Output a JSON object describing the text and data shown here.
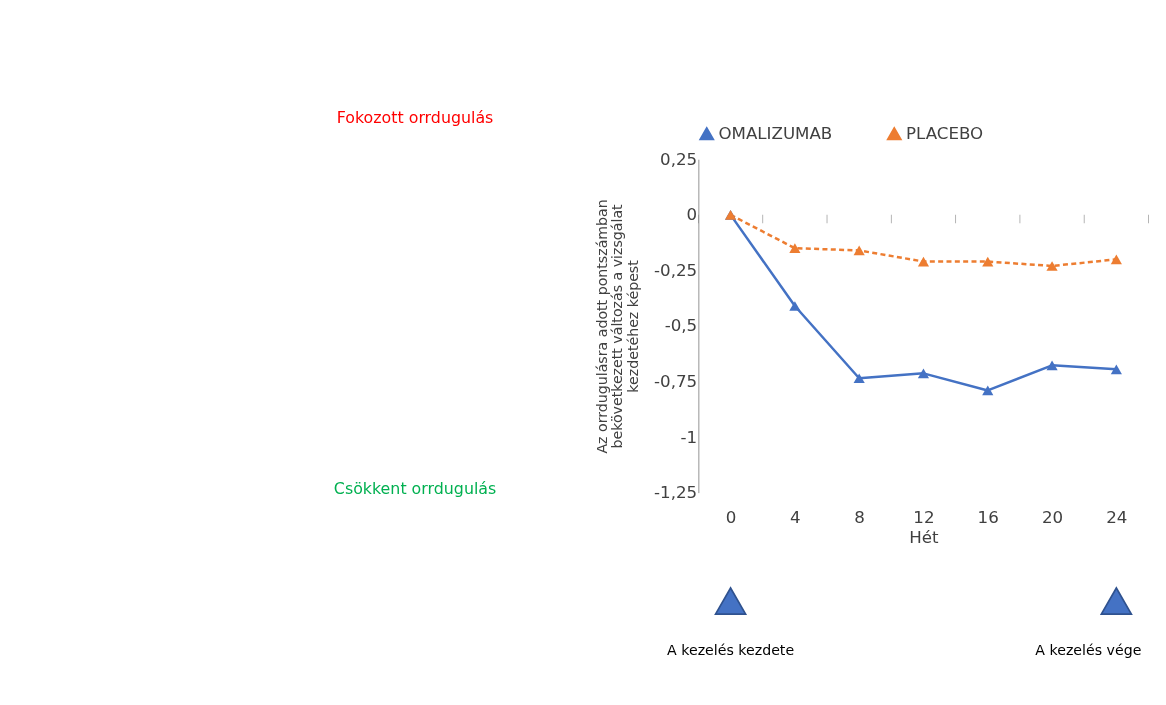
{
  "chart_data": {
    "type": "line",
    "xlabel": "Hét",
    "ylabel": "Az orrdugulásra adott pontszámban bekövetkezett változás a vizsgálat kezdetéhez képest",
    "categories": [
      "0",
      "4",
      "8",
      "12",
      "16",
      "20",
      "24"
    ],
    "series": [
      {
        "name": "OMALIZUMAB",
        "color": "#4472c4",
        "line_style": "solid",
        "values": [
          0,
          -0.41,
          -0.735,
          -0.713,
          -0.79,
          -0.677,
          -0.695
        ]
      },
      {
        "name": "PLACEBO",
        "color": "#ed7d31",
        "line_style": "dashed",
        "values": [
          0,
          -0.15,
          -0.16,
          -0.21,
          -0.21,
          -0.23,
          -0.2
        ]
      }
    ],
    "ylim": [
      -1.25,
      0.25
    ],
    "yticks": [
      {
        "value": -1.25,
        "label": "-1,25"
      },
      {
        "value": -1,
        "label": "-1"
      },
      {
        "value": -0.75,
        "label": "-0,75"
      },
      {
        "value": -0.5,
        "label": "-0,5"
      },
      {
        "value": -0.25,
        "label": "-0,25"
      },
      {
        "value": 0,
        "label": "0"
      },
      {
        "value": 0.25,
        "label": "0,25"
      }
    ],
    "marker": "triangle",
    "grid": false,
    "legend": "top",
    "annotations": [
      "Fokozott orrdugulás",
      "Csökkent orrdugulás",
      "A kezelés kezdete",
      "A kezelés vége"
    ]
  }
}
